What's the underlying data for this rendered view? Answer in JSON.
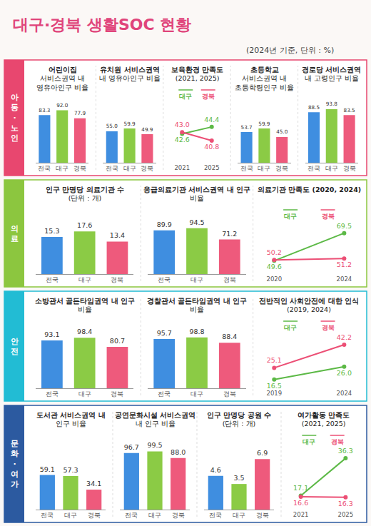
{
  "title": "대구·경북 생활SOC 현황",
  "subtitle": "(2024년 기준, 단위 : %)",
  "chart_data": [
    {
      "section": "아동·노인",
      "type": "bar",
      "title": "어린이집 서비스권역 내 영유아인구 비율",
      "categories": [
        "전국",
        "대구",
        "경북"
      ],
      "values": [
        83.3,
        92.0,
        77.9
      ],
      "value_labels": [
        "83.3",
        "92.0",
        "77.9"
      ],
      "colors": [
        "#3f8ee0",
        "#8bcb45",
        "#ee5a7c"
      ],
      "ylim": [
        0,
        100
      ],
      "data_labels": true,
      "tick_labels": "x",
      "grid": false
    },
    {
      "section": "아동·노인",
      "type": "bar",
      "title": "유치원 서비스권역 내 영유아인구 비율",
      "categories": [
        "전국",
        "대구",
        "경북"
      ],
      "values": [
        55.0,
        59.9,
        49.9
      ],
      "value_labels": [
        "55.0",
        "59.9",
        "49.9"
      ],
      "colors": [
        "#3f8ee0",
        "#8bcb45",
        "#ee5a7c"
      ],
      "ylim": [
        0,
        100
      ],
      "data_labels": true,
      "tick_labels": "x",
      "grid": false
    },
    {
      "section": "아동·노인",
      "type": "line",
      "title": "보육환경 만족도 (2021, 2025)",
      "categories": [
        "2021",
        "2025"
      ],
      "series": [
        {
          "name": "대구",
          "color": "#5cb946",
          "values": [
            42.6,
            44.4
          ],
          "value_labels": [
            "42.6",
            "44.4"
          ]
        },
        {
          "name": "경북",
          "color": "#ec4f75",
          "values": [
            43.0,
            40.8
          ],
          "value_labels": [
            "43.0",
            "40.8"
          ]
        }
      ],
      "ylim": [
        35,
        50
      ],
      "data_labels": true,
      "tick_labels": "x",
      "legend": "top",
      "marker": "circle",
      "grid": false
    },
    {
      "section": "아동·노인",
      "type": "bar",
      "title": "초등학교 서비스권역 내 초등학령인구 비율",
      "categories": [
        "전국",
        "대구",
        "경북"
      ],
      "values": [
        53.7,
        59.9,
        45.0
      ],
      "value_labels": [
        "53.7",
        "59.9",
        "45.0"
      ],
      "colors": [
        "#3f8ee0",
        "#8bcb45",
        "#ee5a7c"
      ],
      "ylim": [
        0,
        100
      ],
      "data_labels": true,
      "tick_labels": "x",
      "grid": false
    },
    {
      "section": "아동·노인",
      "type": "bar",
      "title": "경로당 서비스권역 내 고령인구 비율",
      "categories": [
        "전국",
        "대구",
        "경북"
      ],
      "values": [
        88.5,
        93.8,
        83.5
      ],
      "value_labels": [
        "88.5",
        "93.8",
        "83.5"
      ],
      "colors": [
        "#3f8ee0",
        "#8bcb45",
        "#ee5a7c"
      ],
      "ylim": [
        0,
        100
      ],
      "data_labels": true,
      "tick_labels": "x",
      "grid": false
    },
    {
      "section": "의료",
      "type": "bar",
      "title": "인구 만명당 의료기관 수 (단위 : 개)",
      "categories": [
        "전국",
        "대구",
        "경북"
      ],
      "values": [
        15.3,
        17.6,
        13.4
      ],
      "value_labels": [
        "15.3",
        "17.6",
        "13.4"
      ],
      "colors": [
        "#3f8ee0",
        "#8bcb45",
        "#ee5a7c"
      ],
      "ylim": [
        0,
        20
      ],
      "data_labels": true,
      "tick_labels": "x",
      "grid": false
    },
    {
      "section": "의료",
      "type": "bar",
      "title": "응급의료기관 서비스권역 내 인구 비율",
      "categories": [
        "전국",
        "대구",
        "경북"
      ],
      "values": [
        89.9,
        94.5,
        71.2
      ],
      "value_labels": [
        "89.9",
        "94.5",
        "71.2"
      ],
      "colors": [
        "#3f8ee0",
        "#8bcb45",
        "#ee5a7c"
      ],
      "ylim": [
        0,
        100
      ],
      "data_labels": true,
      "tick_labels": "x",
      "grid": false
    },
    {
      "section": "의료",
      "type": "line",
      "title": "의료기관 만족도 (2020, 2024)",
      "categories": [
        "2020",
        "2024"
      ],
      "series": [
        {
          "name": "대구",
          "color": "#5cb946",
          "values": [
            49.6,
            69.5
          ],
          "value_labels": [
            "49.6",
            "69.5"
          ]
        },
        {
          "name": "경북",
          "color": "#ec4f75",
          "values": [
            50.2,
            51.2
          ],
          "value_labels": [
            "50.2",
            "51.2"
          ]
        }
      ],
      "ylim": [
        40,
        75
      ],
      "data_labels": true,
      "tick_labels": "x",
      "legend": "top",
      "marker": "circle",
      "grid": false
    },
    {
      "section": "안전",
      "type": "bar",
      "title": "소방관서 골든타임권역 내 인구 비율",
      "categories": [
        "전국",
        "대구",
        "경북"
      ],
      "values": [
        93.1,
        98.4,
        80.7
      ],
      "value_labels": [
        "93.1",
        "98.4",
        "80.7"
      ],
      "colors": [
        "#3f8ee0",
        "#8bcb45",
        "#ee5a7c"
      ],
      "ylim": [
        0,
        100
      ],
      "data_labels": true,
      "tick_labels": "x",
      "grid": false
    },
    {
      "section": "안전",
      "type": "bar",
      "title": "경찰관서 골든타임권역 내 인구 비율",
      "categories": [
        "전국",
        "대구",
        "경북"
      ],
      "values": [
        95.7,
        98.8,
        88.4
      ],
      "value_labels": [
        "95.7",
        "98.8",
        "88.4"
      ],
      "colors": [
        "#3f8ee0",
        "#8bcb45",
        "#ee5a7c"
      ],
      "ylim": [
        0,
        100
      ],
      "data_labels": true,
      "tick_labels": "x",
      "grid": false
    },
    {
      "section": "안전",
      "type": "line",
      "title": "전반적인 사회안전에 대한 인식 (2019, 2024)",
      "categories": [
        "2019",
        "2024"
      ],
      "series": [
        {
          "name": "대구",
          "color": "#5cb946",
          "values": [
            16.5,
            26.0
          ],
          "value_labels": [
            "16.5",
            "26.0"
          ]
        },
        {
          "name": "경북",
          "color": "#ec4f75",
          "values": [
            25.1,
            42.2
          ],
          "value_labels": [
            "25.1",
            "42.2"
          ]
        }
      ],
      "ylim": [
        10,
        48
      ],
      "data_labels": true,
      "tick_labels": "x",
      "legend": "top",
      "marker": "circle",
      "grid": false
    },
    {
      "section": "문화·여가",
      "type": "bar",
      "title": "도서관 서비스권역 내 인구 비율",
      "categories": [
        "전국",
        "대구",
        "경북"
      ],
      "values": [
        59.1,
        57.3,
        34.1
      ],
      "value_labels": [
        "59.1",
        "57.3",
        "34.1"
      ],
      "colors": [
        "#3f8ee0",
        "#8bcb45",
        "#ee5a7c"
      ],
      "ylim": [
        0,
        100
      ],
      "data_labels": true,
      "tick_labels": "x",
      "grid": false
    },
    {
      "section": "문화·여가",
      "type": "bar",
      "title": "공연문화시설 서비스권역 내 인구 비율",
      "categories": [
        "전국",
        "대구",
        "경북"
      ],
      "values": [
        96.7,
        99.5,
        88.0
      ],
      "value_labels": [
        "96.7",
        "99.5",
        "88.0"
      ],
      "colors": [
        "#3f8ee0",
        "#8bcb45",
        "#ee5a7c"
      ],
      "ylim": [
        0,
        100
      ],
      "data_labels": true,
      "tick_labels": "x",
      "grid": false
    },
    {
      "section": "문화·여가",
      "type": "bar",
      "title": "인구 만명당 공원 수 (단위 : 개)",
      "categories": [
        "전국",
        "대구",
        "경북"
      ],
      "values": [
        4.6,
        3.5,
        6.9
      ],
      "value_labels": [
        "4.6",
        "3.5",
        "6.9"
      ],
      "colors": [
        "#3f8ee0",
        "#8bcb45",
        "#ee5a7c"
      ],
      "ylim": [
        0,
        8
      ],
      "data_labels": true,
      "tick_labels": "x",
      "grid": false
    },
    {
      "section": "문화·여가",
      "type": "line",
      "title": "여가활동 만족도 (2021, 2025)",
      "categories": [
        "2021",
        "2025"
      ],
      "series": [
        {
          "name": "대구",
          "color": "#5cb946",
          "values": [
            17.1,
            36.3
          ],
          "value_labels": [
            "17.1",
            "36.3"
          ]
        },
        {
          "name": "경북",
          "color": "#ec4f75",
          "values": [
            16.6,
            16.3
          ],
          "value_labels": [
            "16.6",
            "16.3"
          ]
        }
      ],
      "ylim": [
        10,
        40
      ],
      "data_labels": true,
      "tick_labels": "x",
      "legend": "top",
      "marker": "circle",
      "grid": false
    }
  ]
}
